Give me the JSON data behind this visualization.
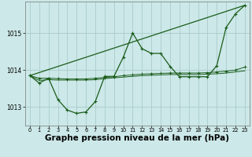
{
  "bg_color": "#cce8e8",
  "grid_color": "#aacccc",
  "line_color": "#1a5c1a",
  "marker_color": "#1a5c1a",
  "xlabel": "Graphe pression niveau de la mer (hPa)",
  "xlabel_fontsize": 7.5,
  "ylim": [
    1012.5,
    1015.85
  ],
  "xlim": [
    -0.5,
    23.5
  ],
  "yticks": [
    1013,
    1014,
    1015
  ],
  "xticks": [
    0,
    1,
    2,
    3,
    4,
    5,
    6,
    7,
    8,
    9,
    10,
    11,
    12,
    13,
    14,
    15,
    16,
    17,
    18,
    19,
    20,
    21,
    22,
    23
  ],
  "series1": {
    "x": [
      0,
      1,
      2,
      3,
      4,
      5,
      6,
      7,
      8,
      9,
      10,
      11,
      12,
      13,
      14,
      15,
      16,
      17,
      18,
      19,
      20,
      21,
      22,
      23
    ],
    "y": [
      1013.85,
      1013.65,
      1013.78,
      1013.2,
      1012.92,
      1012.83,
      1012.87,
      1013.15,
      1013.83,
      1013.83,
      1014.35,
      1015.0,
      1014.58,
      1014.45,
      1014.45,
      1014.1,
      1013.82,
      1013.82,
      1013.82,
      1013.82,
      1014.12,
      1015.15,
      1015.52,
      1015.75
    ]
  },
  "series2": {
    "x": [
      0,
      23
    ],
    "y": [
      1013.85,
      1015.75
    ]
  },
  "series3": {
    "x": [
      0,
      1,
      2,
      3,
      4,
      5,
      6,
      7,
      8,
      9,
      10,
      11,
      12,
      13,
      14,
      15,
      16,
      17,
      18,
      19,
      20,
      21,
      22,
      23
    ],
    "y": [
      1013.85,
      1013.78,
      1013.78,
      1013.77,
      1013.76,
      1013.76,
      1013.76,
      1013.78,
      1013.8,
      1013.82,
      1013.85,
      1013.87,
      1013.89,
      1013.9,
      1013.91,
      1013.92,
      1013.92,
      1013.92,
      1013.92,
      1013.93,
      1013.95,
      1013.97,
      1014.0,
      1014.08
    ]
  },
  "series4": {
    "x": [
      0,
      1,
      2,
      3,
      4,
      5,
      6,
      7,
      8,
      9,
      10,
      11,
      12,
      13,
      14,
      15,
      16,
      17,
      18,
      19,
      20,
      21,
      22,
      23
    ],
    "y": [
      1013.85,
      1013.72,
      1013.74,
      1013.73,
      1013.73,
      1013.73,
      1013.73,
      1013.74,
      1013.77,
      1013.79,
      1013.81,
      1013.83,
      1013.85,
      1013.86,
      1013.87,
      1013.88,
      1013.88,
      1013.88,
      1013.88,
      1013.89,
      1013.9,
      1013.92,
      1013.95,
      1013.98
    ]
  }
}
